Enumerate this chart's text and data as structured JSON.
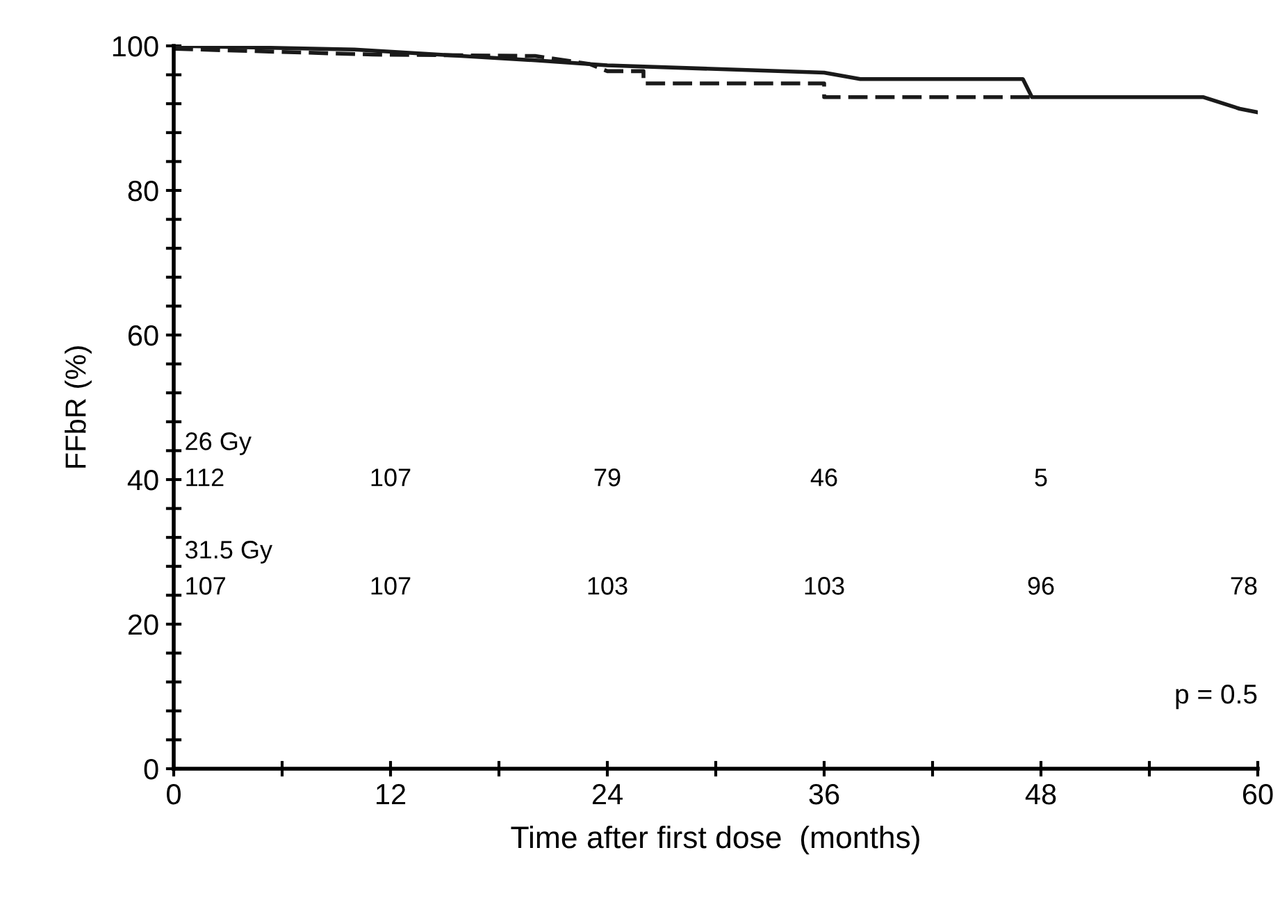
{
  "chart_data": {
    "type": "line",
    "xlabel": "Time after first dose  (months)",
    "ylabel": "FFbR (%)",
    "xlim": [
      0,
      60
    ],
    "ylim": [
      0,
      100
    ],
    "xticks": [
      0,
      {
        "value": 6,
        "label": null
      },
      12,
      {
        "value": 18,
        "label": null
      },
      24,
      {
        "value": 30,
        "label": null
      },
      36,
      {
        "value": 42,
        "label": null
      },
      48,
      {
        "value": 54,
        "label": null
      },
      60
    ],
    "yticks": [
      0,
      {
        "value": 4,
        "label": null
      },
      {
        "value": 8,
        "label": null
      },
      {
        "value": 12,
        "label": null
      },
      {
        "value": 16,
        "label": null
      },
      20,
      {
        "value": 24,
        "label": null
      },
      {
        "value": 28,
        "label": null
      },
      {
        "value": 32,
        "label": null
      },
      {
        "value": 36,
        "label": null
      },
      40,
      {
        "value": 44,
        "label": null
      },
      {
        "value": 48,
        "label": null
      },
      {
        "value": 52,
        "label": null
      },
      {
        "value": 56,
        "label": null
      },
      60,
      {
        "value": 64,
        "label": null
      },
      {
        "value": 68,
        "label": null
      },
      {
        "value": 72,
        "label": null
      },
      {
        "value": 76,
        "label": null
      },
      80,
      {
        "value": 84,
        "label": null
      },
      {
        "value": 88,
        "label": null
      },
      {
        "value": 92,
        "label": null
      },
      {
        "value": 96,
        "label": null
      },
      100
    ],
    "grid": false,
    "legend": false,
    "series": [
      {
        "color": "#1a1a1a",
        "line_style": "solid",
        "x": [
          0,
          10,
          20,
          24,
          36,
          38,
          47,
          47.5,
          57,
          59,
          60
        ],
        "values": [
          100,
          99.5,
          98,
          97.3,
          96.3,
          95.4,
          95.4,
          92.9,
          92.9,
          91.3,
          90.8
        ]
      },
      {
        "color": "#1a1a1a",
        "line_style": "dashed",
        "x": [
          0,
          11,
          20,
          23,
          24,
          26,
          26,
          36,
          36,
          47.5
        ],
        "values": [
          99.6,
          98.8,
          98.6,
          97.5,
          96.5,
          96.5,
          94.8,
          94.8,
          92.9,
          92.9
        ]
      }
    ],
    "annotations": [
      "26 Gy",
      "112",
      "107",
      "79",
      "46",
      "5",
      "31.5 Gy",
      "107",
      "107",
      "103",
      "103",
      "96",
      "78",
      "p = 0.5"
    ]
  }
}
